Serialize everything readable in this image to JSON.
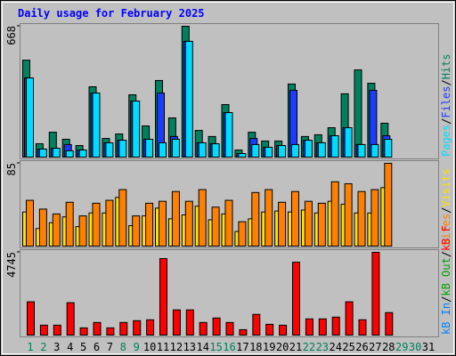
{
  "legend_separator": "/",
  "chart_data": [
    {
      "type": "bar",
      "title": "Daily usage for February 2025",
      "ylim": [
        0,
        668
      ],
      "yticks": [
        668
      ],
      "series": [
        {
          "name": "Hits",
          "color": "#00805c",
          "values": [
            495,
            68,
            127,
            91,
            59,
            359,
            95,
            118,
            318,
            159,
            391,
            200,
            668,
            136,
            105,
            268,
            36,
            127,
            82,
            82,
            373,
            105,
            114,
            150,
            323,
            445,
            377,
            173,
            null,
            null,
            null
          ]
        },
        {
          "name": "Files",
          "color": "#1a3cff",
          "values": [
            404,
            41,
            45,
            64,
            36,
            327,
            73,
            86,
            286,
            91,
            327,
            105,
            591,
            73,
            68,
            227,
            18,
            95,
            50,
            59,
            341,
            86,
            73,
            109,
            150,
            64,
            341,
            109,
            null,
            null,
            null
          ]
        },
        {
          "name": "Pages",
          "color": "#00dcff",
          "values": [
            404,
            41,
            45,
            32,
            36,
            327,
            73,
            86,
            286,
            91,
            73,
            91,
            591,
            73,
            68,
            227,
            18,
            64,
            50,
            59,
            64,
            86,
            73,
            109,
            150,
            64,
            64,
            91,
            null,
            null,
            null
          ]
        }
      ]
    },
    {
      "type": "bar",
      "ylim": [
        0,
        85
      ],
      "yticks": [
        85
      ],
      "series": [
        {
          "name": "Visits",
          "color": "#ffe000",
          "values": [
            35,
            18,
            24,
            30,
            20,
            34,
            34,
            50,
            21,
            31,
            39,
            28,
            32,
            41,
            27,
            33,
            15,
            28,
            35,
            36,
            35,
            37,
            34,
            46,
            43,
            34,
            34,
            60,
            null,
            null,
            null
          ]
        },
        {
          "name": "Sites",
          "color": "#ff8000",
          "values": [
            47,
            38,
            33,
            45,
            31,
            44,
            47,
            58,
            31,
            44,
            46,
            56,
            46,
            58,
            40,
            47,
            25,
            55,
            58,
            45,
            56,
            46,
            44,
            66,
            64,
            56,
            58,
            85,
            null,
            null,
            null
          ]
        }
      ]
    },
    {
      "type": "bar",
      "ylim": [
        0,
        4745
      ],
      "yticks": [
        4745
      ],
      "categories": [
        1,
        2,
        3,
        4,
        5,
        6,
        7,
        8,
        9,
        10,
        11,
        12,
        13,
        14,
        15,
        16,
        17,
        18,
        19,
        20,
        21,
        22,
        23,
        24,
        25,
        26,
        27,
        28,
        29,
        30,
        31
      ],
      "label_colors": [
        "#00805c",
        "#00805c",
        "#000",
        "#000",
        "#000",
        "#000",
        "#000",
        "#00805c",
        "#00805c",
        "#000",
        "#000",
        "#000",
        "#000",
        "#000",
        "#00805c",
        "#00805c",
        "#000",
        "#000",
        "#000",
        "#000",
        "#000",
        "#00805c",
        "#00805c",
        "#000",
        "#000",
        "#000",
        "#000",
        "#000",
        "#00805c",
        "#00805c",
        "#000"
      ],
      "series": [
        {
          "name": "kB F",
          "color": "#ff0000",
          "values": [
            1908,
            567,
            567,
            1857,
            413,
            722,
            413,
            722,
            825,
            877,
            4384,
            1444,
            1444,
            722,
            980,
            722,
            310,
            1186,
            619,
            567,
            4178,
            928,
            928,
            1031,
            1908,
            877,
            4745,
            1289,
            null,
            null,
            null
          ]
        },
        {
          "name": "kB Out",
          "color": "#00a000",
          "values": [
            null,
            null,
            null,
            null,
            null,
            null,
            null,
            null,
            null,
            null,
            null,
            null,
            null,
            null,
            null,
            null,
            null,
            null,
            null,
            null,
            null,
            null,
            null,
            null,
            null,
            null,
            null,
            null,
            null,
            null,
            null
          ]
        },
        {
          "name": "kB In",
          "color": "#0080ff",
          "values": [
            null,
            null,
            null,
            null,
            null,
            null,
            null,
            null,
            null,
            null,
            null,
            null,
            null,
            null,
            null,
            null,
            null,
            null,
            null,
            null,
            null,
            null,
            null,
            null,
            null,
            null,
            null,
            null,
            null,
            null,
            null
          ]
        }
      ]
    }
  ]
}
